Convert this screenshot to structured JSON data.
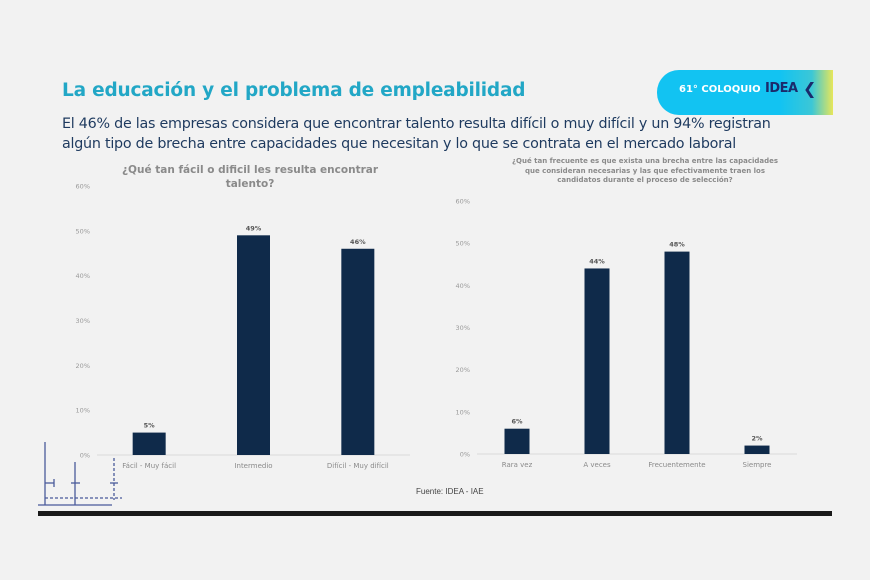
{
  "header": {
    "title": "La educación y el problema de empleabilidad",
    "subtitle_line1": "El 46% de las empresas considera que encontrar talento resulta difícil o muy difícil y un 94% registran",
    "subtitle_line2": "algún tipo de brecha entre capacidades que necesitan y lo que se contrata en el mercado laboral"
  },
  "badge": {
    "text": "61° COLOQUIO",
    "logo": "IDEA",
    "logo_icon": "chevron-left-icon"
  },
  "colors": {
    "title": "#22a7c6",
    "subtitle": "#1e3a5f",
    "bar": "#0f2a4a",
    "badge": "#12c3f2"
  },
  "chart_data": [
    {
      "type": "bar",
      "title": "¿Qué tan fácil o difícil les resulta encontrar talento?",
      "title_line1": "¿Qué tan fácil o dificil les resulta encontrar",
      "title_line2": "talento?",
      "categories": [
        "Fácil - Muy fácil",
        "Intermedio",
        "Difícil - Muy difícil"
      ],
      "values": [
        5,
        49,
        46
      ],
      "value_labels": [
        "5%",
        "49%",
        "46%"
      ],
      "yticks": [
        "0%",
        "10%",
        "20%",
        "30%",
        "40%",
        "50%",
        "60%"
      ],
      "ylim": [
        0,
        60
      ],
      "xlabel": "",
      "ylabel": ""
    },
    {
      "type": "bar",
      "title_line1": "¿Qué tan frecuente es que exista una brecha entre las capacidades",
      "title_line2": "que consideran necesarias y las que efectivamente traen los",
      "title_line3": "candidatos durante el proceso de selección?",
      "categories": [
        "Rara vez",
        "A veces",
        "Frecuentemente",
        "Siempre"
      ],
      "values": [
        6,
        44,
        48,
        2
      ],
      "value_labels": [
        "6%",
        "44%",
        "48%",
        "2%"
      ],
      "yticks": [
        "0%",
        "10%",
        "20%",
        "30%",
        "40%",
        "50%",
        "60%"
      ],
      "ylim": [
        0,
        60
      ],
      "xlabel": "",
      "ylabel": ""
    }
  ],
  "footer": {
    "source": "Fuente: IDEA - IAE"
  }
}
